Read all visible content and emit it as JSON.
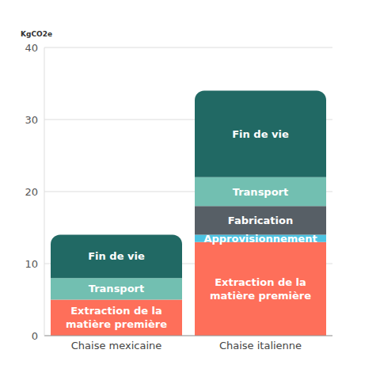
{
  "chart_data": {
    "type": "bar",
    "y_label": "KgCO2e",
    "categories": [
      "Chaise mexicaine",
      "Chaise italienne"
    ],
    "series": [
      {
        "name": "Extraction de la matière première",
        "color": "#fe6f5a",
        "values": [
          5,
          13
        ]
      },
      {
        "name": "Approvisionnement",
        "color": "#4cc3e2",
        "values": [
          null,
          1
        ]
      },
      {
        "name": "Fabrication",
        "color": "#575f66",
        "values": [
          null,
          4
        ]
      },
      {
        "name": "Transport",
        "color": "#72bfb1",
        "values": [
          3,
          4
        ]
      },
      {
        "name": "Fin de vie",
        "color": "#216964",
        "values": [
          6,
          12
        ]
      }
    ],
    "stacked": true,
    "ylim": [
      0,
      40
    ],
    "yticks": [
      0,
      10,
      20,
      30,
      40
    ],
    "grid": true
  }
}
